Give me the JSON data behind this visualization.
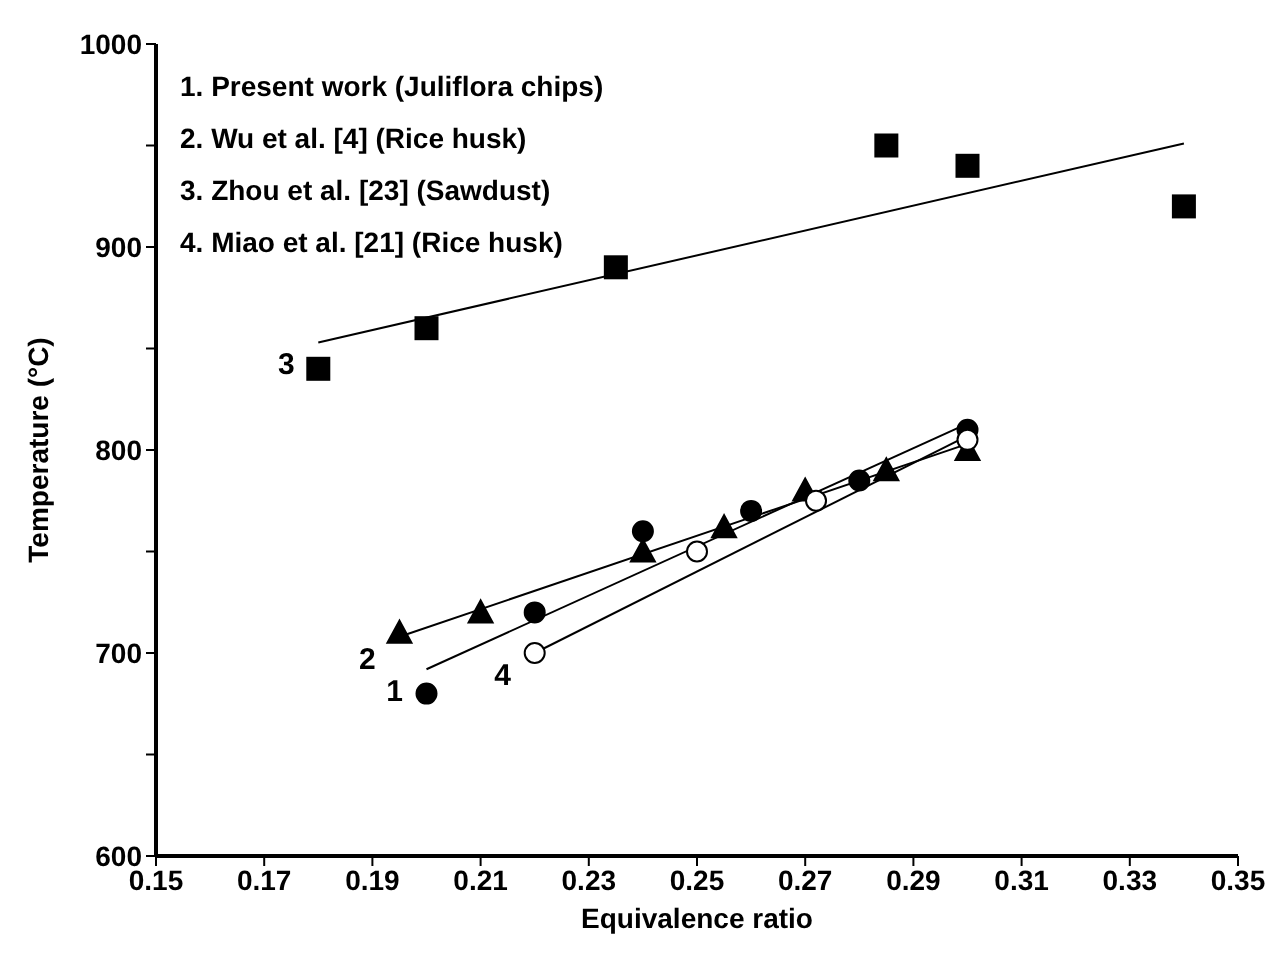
{
  "chart_data": {
    "type": "scatter",
    "xlabel": "Equivalence ratio",
    "ylabel": "Temperature (°C)",
    "xlim": [
      0.15,
      0.35
    ],
    "xticks": [
      0.15,
      0.17,
      0.19,
      0.21,
      0.23,
      0.25,
      0.27,
      0.29,
      0.31,
      0.33,
      0.35
    ],
    "ylim": [
      600,
      1000
    ],
    "yticks": [
      600,
      {
        "value": 650,
        "label": null
      },
      700,
      {
        "value": 750,
        "label": null
      },
      800,
      {
        "value": 850,
        "label": null
      },
      900,
      {
        "value": 950,
        "label": null
      },
      1000
    ],
    "grid": false,
    "legend": false,
    "series": [
      {
        "marker": "circle",
        "color": "#000000",
        "x": [
          0.2,
          0.22,
          0.24,
          0.26,
          0.28,
          0.3
        ],
        "values": [
          680,
          720,
          760,
          770,
          785,
          810
        ]
      },
      {
        "marker": "triangle",
        "color": "#000000",
        "x": [
          0.195,
          0.21,
          0.24,
          0.255,
          0.27,
          0.285,
          0.3
        ],
        "values": [
          710,
          720,
          750,
          762,
          780,
          790,
          800
        ]
      },
      {
        "marker": "square",
        "color": "#000000",
        "x": [
          0.18,
          0.2,
          0.235,
          0.285,
          0.3,
          0.34
        ],
        "values": [
          840,
          860,
          890,
          950,
          940,
          920
        ]
      },
      {
        "marker": "circle",
        "color": "#ffffff",
        "x": [
          0.22,
          0.25,
          0.272,
          0.3
        ],
        "values": [
          700,
          750,
          775,
          805
        ]
      },
      {
        "type": "line",
        "marker": "none",
        "color": "#000000",
        "x": [
          0.2,
          0.3
        ],
        "values": [
          692,
          813
        ]
      },
      {
        "type": "line",
        "marker": "none",
        "color": "#000000",
        "x": [
          0.195,
          0.3
        ],
        "values": [
          708,
          803
        ]
      },
      {
        "type": "line",
        "marker": "none",
        "color": "#000000",
        "x": [
          0.18,
          0.34
        ],
        "values": [
          853,
          951
        ]
      },
      {
        "type": "line",
        "marker": "none",
        "color": "#000000",
        "x": [
          0.22,
          0.3
        ],
        "values": [
          700,
          807
        ]
      }
    ],
    "annotations": [
      "1. Present work (Juliflora chips)",
      "2. Wu et al. [4] (Rice husk)",
      "3. Zhou et al. [23] (Sawdust)",
      "4. Miao et al. [21] (Rice husk)",
      {
        "text": "1",
        "x": 0.2,
        "y": 692
      },
      {
        "text": "2",
        "x": 0.195,
        "y": 708
      },
      {
        "text": "3",
        "x": 0.18,
        "y": 853
      },
      {
        "text": "4",
        "x": 0.22,
        "y": 700
      }
    ]
  }
}
